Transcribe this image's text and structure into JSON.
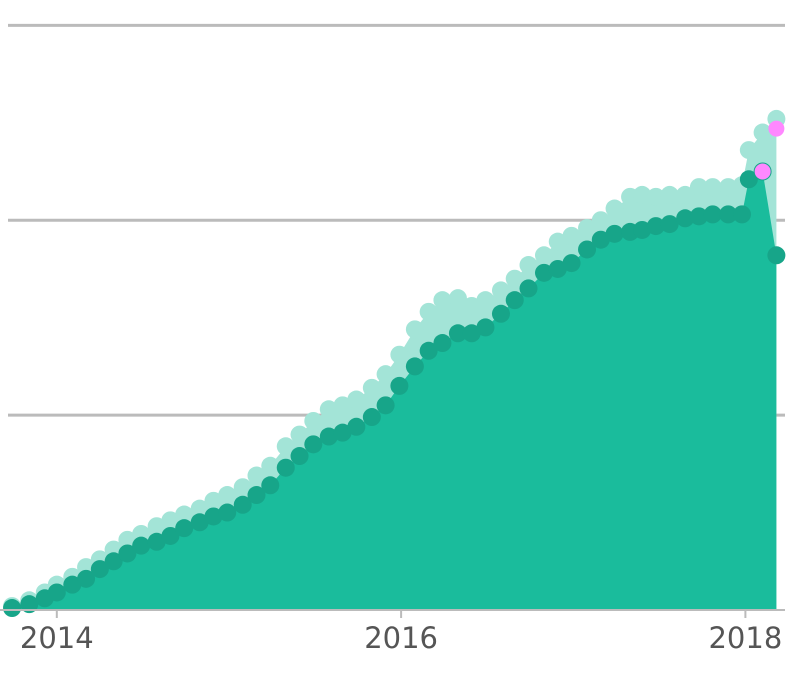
{
  "chart_data": {
    "type": "area",
    "x": [
      2013.74,
      2013.84,
      2013.93,
      2014,
      2014.09,
      2014.17,
      2014.25,
      2014.33,
      2014.41,
      2014.49,
      2014.58,
      2014.66,
      2014.74,
      2014.83,
      2014.91,
      2014.99,
      2015.08,
      2015.16,
      2015.24,
      2015.33,
      2015.41,
      2015.49,
      2015.58,
      2015.66,
      2015.74,
      2015.83,
      2015.91,
      2015.99,
      2016.08,
      2016.16,
      2016.24,
      2016.33,
      2016.41,
      2016.49,
      2016.58,
      2016.66,
      2016.74,
      2016.83,
      2016.91,
      2016.99,
      2017.08,
      2017.16,
      2017.24,
      2017.33,
      2017.4,
      2017.48,
      2017.56,
      2017.65,
      2017.73,
      2017.81,
      2017.9,
      2017.98,
      2018.02,
      2018.1,
      2018.18
    ],
    "series": [
      {
        "color": "#a3e4d7",
        "values": [
          0.02,
          0.05,
          0.09,
          0.13,
          0.17,
          0.22,
          0.26,
          0.31,
          0.36,
          0.39,
          0.43,
          0.46,
          0.49,
          0.52,
          0.56,
          0.59,
          0.63,
          0.69,
          0.74,
          0.84,
          0.9,
          0.97,
          1.03,
          1.05,
          1.08,
          1.14,
          1.21,
          1.31,
          1.44,
          1.53,
          1.59,
          1.6,
          1.56,
          1.59,
          1.64,
          1.7,
          1.77,
          1.82,
          1.89,
          1.92,
          1.96,
          2,
          2.06,
          2.12,
          2.13,
          2.12,
          2.13,
          2.13,
          2.17,
          2.17,
          2.17,
          2.18,
          2.36,
          2.45,
          2.52
        ]
      },
      {
        "color": "#1abc9c",
        "values": [
          0.01,
          0.03,
          0.06,
          0.09,
          0.13,
          0.16,
          0.21,
          0.25,
          0.29,
          0.33,
          0.35,
          0.38,
          0.42,
          0.45,
          0.48,
          0.5,
          0.54,
          0.59,
          0.64,
          0.73,
          0.79,
          0.85,
          0.89,
          0.91,
          0.94,
          0.99,
          1.05,
          1.15,
          1.25,
          1.33,
          1.37,
          1.42,
          1.42,
          1.45,
          1.52,
          1.59,
          1.65,
          1.73,
          1.75,
          1.78,
          1.85,
          1.9,
          1.93,
          1.94,
          1.95,
          1.97,
          1.98,
          2.01,
          2.02,
          2.03,
          2.03,
          2.03,
          2.21,
          2.25,
          1.82
        ]
      },
      {
        "color": "#ff33ff",
        "values": [
          null,
          null,
          null,
          null,
          null,
          null,
          null,
          null,
          null,
          null,
          null,
          null,
          null,
          null,
          null,
          null,
          null,
          null,
          null,
          null,
          null,
          null,
          null,
          null,
          null,
          null,
          null,
          null,
          null,
          null,
          null,
          null,
          null,
          null,
          null,
          null,
          null,
          null,
          null,
          null,
          null,
          null,
          null,
          null,
          null,
          null,
          null,
          null,
          null,
          null,
          null,
          null,
          null,
          2.25,
          2.47
        ]
      }
    ],
    "xlim": [
      2013.67,
      2018.23
    ],
    "xticks": [
      2014,
      2016,
      2018
    ],
    "ylim": [
      0,
      3.13
    ],
    "yticks": [
      1,
      2,
      3
    ],
    "grid": true
  }
}
